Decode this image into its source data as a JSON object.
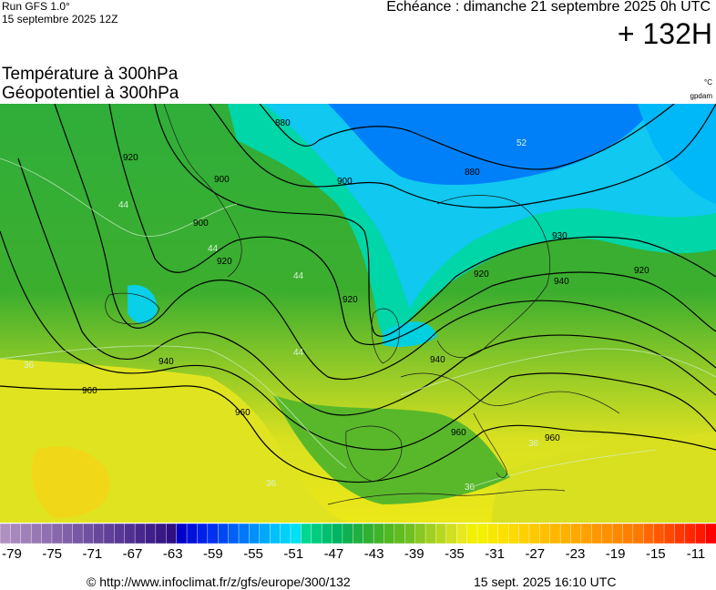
{
  "header": {
    "run": "Run GFS 1.0°",
    "run_date": "15 septembre 2025 12Z",
    "echeance": "Echéance : dimanche 21 septembre 2025 0h UTC",
    "hour": "+ 132H"
  },
  "titles": {
    "line1": "Température à 300hPa",
    "line2": "Géopotentiel à 300hPa",
    "unit_temp": "°C",
    "unit_geo": "gpdam"
  },
  "map": {
    "contour_labels": [
      "880",
      "880",
      "900",
      "900",
      "900",
      "920",
      "920",
      "920",
      "920",
      "920",
      "940",
      "940",
      "940",
      "960",
      "960",
      "960",
      "960",
      "930"
    ],
    "temp_labels": [
      "52",
      "44",
      "44",
      "44",
      "44",
      "36",
      "36",
      "36",
      "36"
    ]
  },
  "colorbar": {
    "ticks": [
      "-79",
      "-75",
      "-71",
      "-67",
      "-63",
      "-59",
      "-55",
      "-51",
      "-47",
      "-43",
      "-39",
      "-35",
      "-31",
      "-27",
      "-23",
      "-19",
      "-15",
      "-11"
    ],
    "colors": [
      "#b090c0",
      "#a888bc",
      "#a080b8",
      "#9878b4",
      "#9070b0",
      "#8868ac",
      "#8060a8",
      "#7858a4",
      "#7050a0",
      "#68489c",
      "#604098",
      "#583894",
      "#503090",
      "#48288c",
      "#402088",
      "#381884",
      "#301080",
      "#0000c8",
      "#0010d8",
      "#0020e8",
      "#0030f0",
      "#0048f4",
      "#0060f8",
      "#0078fa",
      "#0090fc",
      "#00a8fc",
      "#00c0fc",
      "#00d0fa",
      "#00e0f4",
      "#00d890",
      "#00cc80",
      "#00c070",
      "#00b460",
      "#10b050",
      "#20b040",
      "#30b030",
      "#40b428",
      "#50b820",
      "#60bc20",
      "#70c020",
      "#88c820",
      "#a0d020",
      "#b8d820",
      "#d0e020",
      "#e8e820",
      "#f0f000",
      "#f4f000",
      "#f8e800",
      "#fce000",
      "#fed800",
      "#ffd000",
      "#ffc800",
      "#ffc000",
      "#ffb800",
      "#ffb000",
      "#ffa800",
      "#ffa000",
      "#ff9800",
      "#ff9000",
      "#ff8800",
      "#ff8000",
      "#ff7800",
      "#ff6800",
      "#ff5800",
      "#ff4800",
      "#ff3800",
      "#ff2800",
      "#ff1800",
      "#ff0000"
    ]
  },
  "footer": {
    "copyright": "© http://www.infoclimat.fr/z/gfs/europe/300/132",
    "timestamp": "15 sept. 2025 16:10 UTC"
  }
}
